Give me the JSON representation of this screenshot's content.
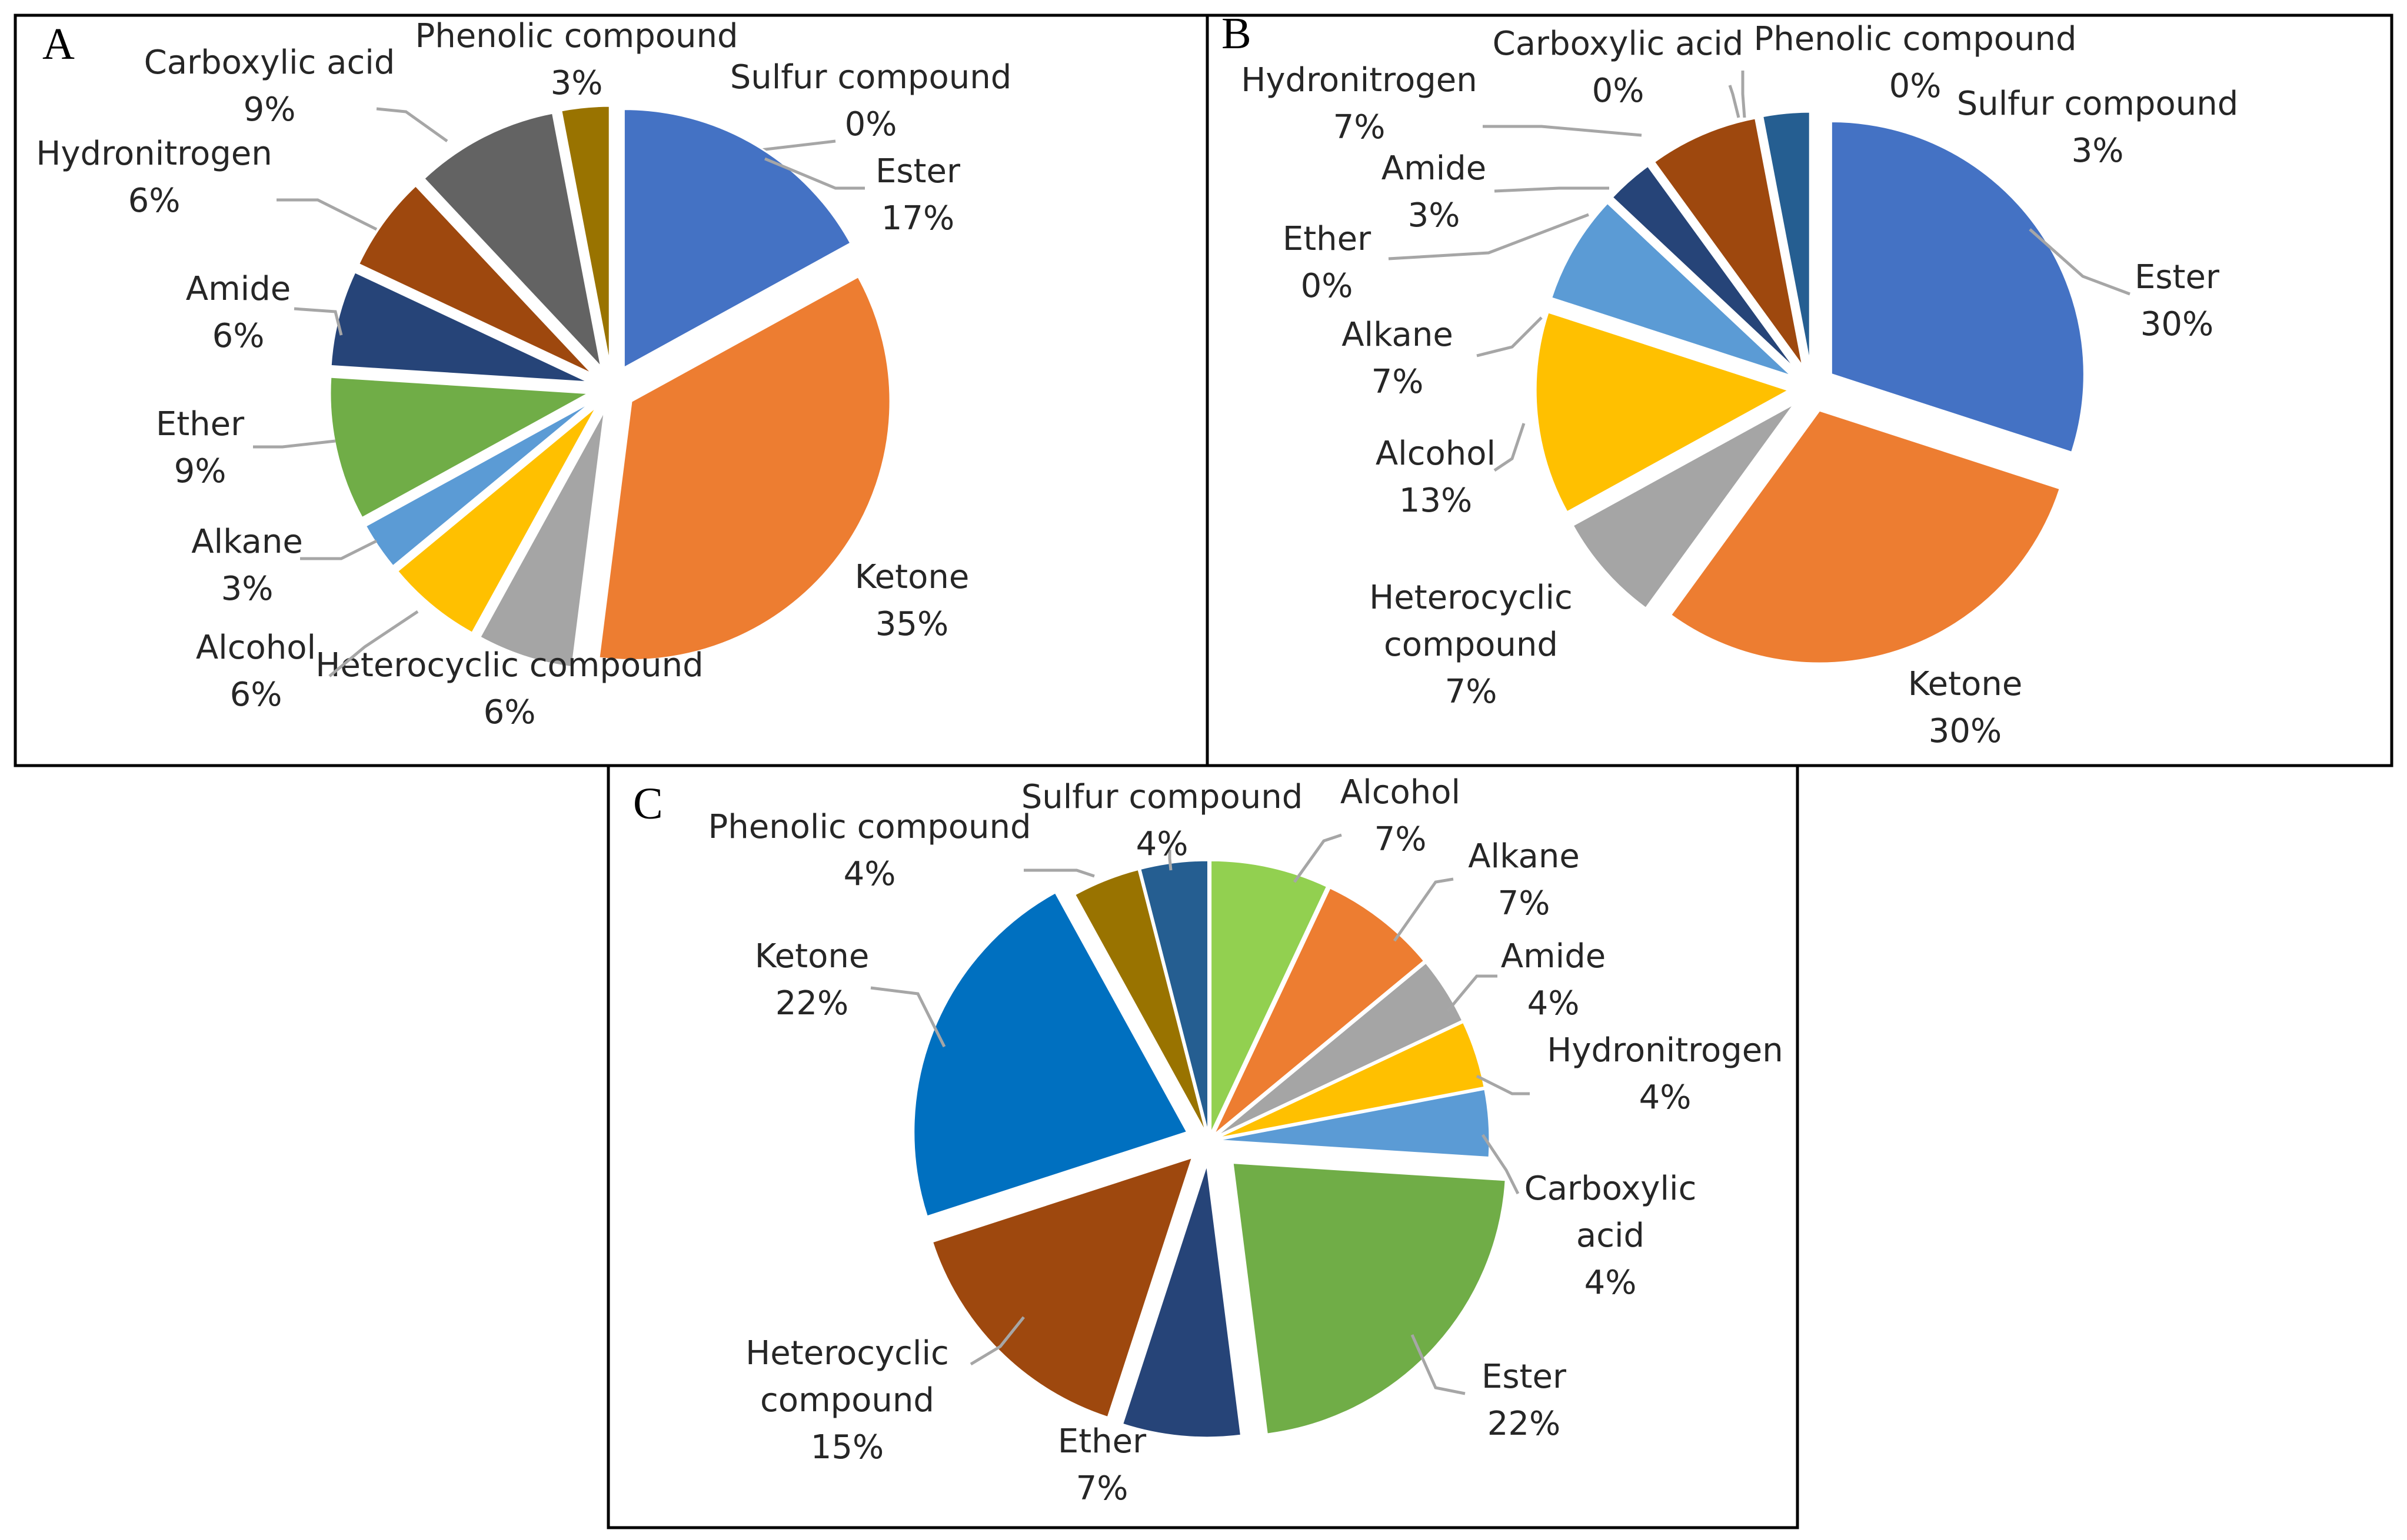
{
  "figure": {
    "description_free": true
  },
  "chart_data": [
    {
      "panel": "A",
      "type": "pie",
      "title": "",
      "slices": [
        {
          "label": "Sulfur compound",
          "value": 0,
          "display": "0%",
          "color": "#2e5c8a"
        },
        {
          "label": "Ester",
          "value": 17,
          "display": "17%",
          "color": "#4472c4"
        },
        {
          "label": "Ketone",
          "value": 35,
          "display": "35%",
          "color": "#ed7d31"
        },
        {
          "label": "Heterocyclic compound",
          "value": 6,
          "display": "6%",
          "color": "#a5a5a5"
        },
        {
          "label": "Alcohol",
          "value": 6,
          "display": "6%",
          "color": "#ffc000"
        },
        {
          "label": "Alkane",
          "value": 3,
          "display": "3%",
          "color": "#5b9bd5"
        },
        {
          "label": "Ether",
          "value": 9,
          "display": "9%",
          "color": "#70ad47"
        },
        {
          "label": "Amide",
          "value": 6,
          "display": "6%",
          "color": "#264478"
        },
        {
          "label": "Hydronitrogen",
          "value": 6,
          "display": "6%",
          "color": "#9e480e"
        },
        {
          "label": "Carboxylic acid",
          "value": 9,
          "display": "9%",
          "color": "#636363"
        },
        {
          "label": "Phenolic compound",
          "value": 3,
          "display": "3%",
          "color": "#997300"
        }
      ]
    },
    {
      "panel": "B",
      "type": "pie",
      "title": "",
      "slices": [
        {
          "label": "Ester",
          "value": 30,
          "display": "30%",
          "color": "#4472c4"
        },
        {
          "label": "Ketone",
          "value": 30,
          "display": "30%",
          "color": "#ed7d31"
        },
        {
          "label": "Heterocyclic compound",
          "value": 7,
          "display": "7%",
          "color": "#a5a5a5"
        },
        {
          "label": "Alcohol",
          "value": 13,
          "display": "13%",
          "color": "#ffc000"
        },
        {
          "label": "Alkane",
          "value": 7,
          "display": "7%",
          "color": "#5b9bd5"
        },
        {
          "label": "Ether",
          "value": 0,
          "display": "0%",
          "color": "#70ad47"
        },
        {
          "label": "Amide",
          "value": 3,
          "display": "3%",
          "color": "#264478"
        },
        {
          "label": "Hydronitrogen",
          "value": 7,
          "display": "7%",
          "color": "#9e480e"
        },
        {
          "label": "Carboxylic acid",
          "value": 0,
          "display": "0%",
          "color": "#636363"
        },
        {
          "label": "Phenolic compound",
          "value": 0,
          "display": "0%",
          "color": "#997300"
        },
        {
          "label": "Sulfur compound",
          "value": 3,
          "display": "3%",
          "color": "#255e91"
        }
      ]
    },
    {
      "panel": "C",
      "type": "pie",
      "title": "",
      "slices": [
        {
          "label": "Alcohol",
          "value": 7,
          "display": "7%",
          "color": "#92d050"
        },
        {
          "label": "Alkane",
          "value": 7,
          "display": "7%",
          "color": "#ed7d31"
        },
        {
          "label": "Amide",
          "value": 4,
          "display": "4%",
          "color": "#a5a5a5"
        },
        {
          "label": "Hydronitrogen",
          "value": 4,
          "display": "4%",
          "color": "#ffc000"
        },
        {
          "label": "Carboxylic acid",
          "value": 4,
          "display": "4%",
          "color": "#5b9bd5"
        },
        {
          "label": "Ester",
          "value": 22,
          "display": "22%",
          "color": "#70ad47"
        },
        {
          "label": "Ether",
          "value": 7,
          "display": "7%",
          "color": "#264478"
        },
        {
          "label": "Heterocyclic compound",
          "value": 15,
          "display": "15%",
          "color": "#9e480e"
        },
        {
          "label": "Ketone",
          "value": 22,
          "display": "22%",
          "color": "#0070c0"
        },
        {
          "label": "Phenolic compound",
          "value": 4,
          "display": "4%",
          "color": "#997300"
        },
        {
          "label": "Sulfur compound",
          "value": 4,
          "display": "4%",
          "color": "#255e91"
        }
      ]
    }
  ]
}
